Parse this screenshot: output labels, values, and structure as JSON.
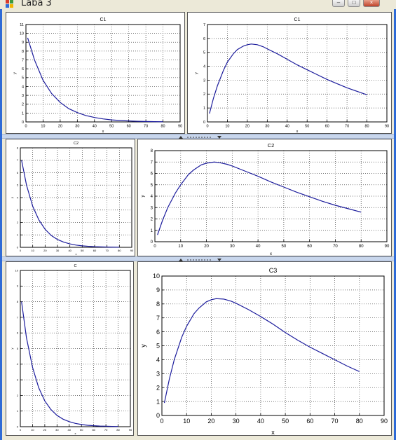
{
  "window": {
    "title": "Laba 3"
  },
  "chart_data": [
    {
      "type": "line",
      "title": "C1",
      "xlabel": "x",
      "ylabel": "y",
      "xlim": [
        0,
        90
      ],
      "ylim": [
        0,
        11
      ],
      "xticks": [
        "0",
        "10",
        "20",
        "30",
        "40",
        "50",
        "60",
        "70",
        "80",
        "90"
      ],
      "yticks": [
        "0",
        "1",
        "2",
        "3",
        "4",
        "5",
        "6",
        "7",
        "8",
        "9",
        "10",
        "11"
      ],
      "grid": true,
      "series": [
        {
          "color": "#1c1c9c",
          "x": [
            1,
            5,
            10,
            15,
            20,
            25,
            30,
            35,
            40,
            45,
            50,
            55,
            60,
            65,
            70,
            75,
            80
          ],
          "y": [
            9.5,
            7.0,
            4.7,
            3.2,
            2.2,
            1.5,
            1.05,
            0.72,
            0.5,
            0.34,
            0.23,
            0.16,
            0.11,
            0.07,
            0.05,
            0.03,
            0.02
          ]
        }
      ]
    },
    {
      "type": "line",
      "title": "C1",
      "xlabel": "x",
      "ylabel": "y",
      "xlim": [
        0,
        90
      ],
      "ylim": [
        0,
        7
      ],
      "xticks": [
        "0",
        "10",
        "20",
        "30",
        "40",
        "50",
        "60",
        "70",
        "80",
        "90"
      ],
      "yticks": [
        "0",
        "1",
        "2",
        "3",
        "4",
        "5",
        "6",
        "7"
      ],
      "grid": true,
      "series": [
        {
          "color": "#1c1c9c",
          "x": [
            1,
            3,
            5,
            8,
            10,
            13,
            15,
            18,
            20,
            22,
            25,
            28,
            30,
            35,
            40,
            45,
            50,
            55,
            60,
            65,
            70,
            75,
            80
          ],
          "y": [
            0.6,
            1.7,
            2.6,
            3.7,
            4.3,
            4.9,
            5.2,
            5.45,
            5.55,
            5.6,
            5.55,
            5.4,
            5.25,
            4.9,
            4.5,
            4.1,
            3.75,
            3.4,
            3.05,
            2.75,
            2.45,
            2.2,
            1.95
          ]
        }
      ]
    },
    {
      "type": "line",
      "title": "C2",
      "xlabel": "x",
      "ylabel": "y",
      "xlim": [
        0,
        90
      ],
      "ylim": [
        0,
        8
      ],
      "xticks": [
        "0",
        "10",
        "20",
        "30",
        "40",
        "50",
        "60",
        "70",
        "80",
        "90"
      ],
      "yticks": [
        "0",
        "1",
        "2",
        "3",
        "4",
        "5",
        "6",
        "7",
        "8"
      ],
      "grid": true,
      "series": [
        {
          "color": "#1c1c9c",
          "x": [
            1,
            5,
            10,
            15,
            20,
            25,
            30,
            35,
            40,
            45,
            50,
            55,
            60,
            65,
            70,
            75,
            80
          ],
          "y": [
            7.0,
            5.0,
            3.3,
            2.2,
            1.45,
            0.95,
            0.63,
            0.42,
            0.28,
            0.18,
            0.12,
            0.08,
            0.05,
            0.035,
            0.02,
            0.015,
            0.01
          ]
        }
      ]
    },
    {
      "type": "line",
      "title": "C2",
      "xlabel": "x",
      "ylabel": "y",
      "xlim": [
        0,
        90
      ],
      "ylim": [
        0,
        8
      ],
      "xticks": [
        "0",
        "10",
        "20",
        "30",
        "40",
        "50",
        "60",
        "70",
        "80",
        "90"
      ],
      "yticks": [
        "0",
        "1",
        "2",
        "3",
        "4",
        "5",
        "6",
        "7",
        "8"
      ],
      "grid": true,
      "series": [
        {
          "color": "#1c1c9c",
          "x": [
            1,
            3,
            5,
            8,
            10,
            13,
            15,
            18,
            20,
            23,
            25,
            28,
            30,
            35,
            40,
            45,
            50,
            55,
            60,
            65,
            70,
            75,
            80
          ],
          "y": [
            0.6,
            1.9,
            3.0,
            4.3,
            5.0,
            5.9,
            6.3,
            6.75,
            6.9,
            7.0,
            6.95,
            6.8,
            6.65,
            6.2,
            5.75,
            5.25,
            4.8,
            4.35,
            3.95,
            3.55,
            3.2,
            2.9,
            2.6
          ]
        }
      ]
    },
    {
      "type": "line",
      "title": "C",
      "xlabel": "x",
      "ylabel": "y",
      "xlim": [
        0,
        90
      ],
      "ylim": [
        0,
        10
      ],
      "xticks": [
        "0",
        "10",
        "20",
        "30",
        "40",
        "50",
        "60",
        "70",
        "80",
        "90"
      ],
      "yticks": [
        "0",
        "1",
        "2",
        "3",
        "4",
        "5",
        "6",
        "7",
        "8",
        "9",
        "10"
      ],
      "grid": true,
      "series": [
        {
          "color": "#1c1c9c",
          "x": [
            1,
            5,
            10,
            15,
            20,
            25,
            30,
            35,
            40,
            45,
            50,
            55,
            60,
            65,
            70,
            75,
            80
          ],
          "y": [
            8.0,
            5.7,
            3.8,
            2.5,
            1.65,
            1.1,
            0.72,
            0.48,
            0.32,
            0.21,
            0.14,
            0.09,
            0.06,
            0.04,
            0.03,
            0.02,
            0.01
          ]
        }
      ]
    },
    {
      "type": "line",
      "title": "C3",
      "xlabel": "x",
      "ylabel": "y",
      "xlim": [
        0,
        90
      ],
      "ylim": [
        0,
        10
      ],
      "xticks": [
        "0",
        "10",
        "20",
        "30",
        "40",
        "50",
        "60",
        "70",
        "80",
        "90"
      ],
      "yticks": [
        "0",
        "1",
        "2",
        "3",
        "4",
        "5",
        "6",
        "7",
        "8",
        "9",
        "10"
      ],
      "grid": true,
      "series": [
        {
          "color": "#1c1c9c",
          "x": [
            1,
            3,
            5,
            8,
            10,
            13,
            15,
            18,
            20,
            22,
            25,
            28,
            30,
            35,
            40,
            45,
            50,
            55,
            60,
            65,
            70,
            75,
            80
          ],
          "y": [
            0.9,
            2.6,
            4.0,
            5.6,
            6.4,
            7.3,
            7.7,
            8.15,
            8.3,
            8.38,
            8.35,
            8.2,
            8.05,
            7.6,
            7.1,
            6.55,
            5.95,
            5.4,
            4.9,
            4.45,
            4.0,
            3.55,
            3.15
          ]
        }
      ]
    }
  ]
}
